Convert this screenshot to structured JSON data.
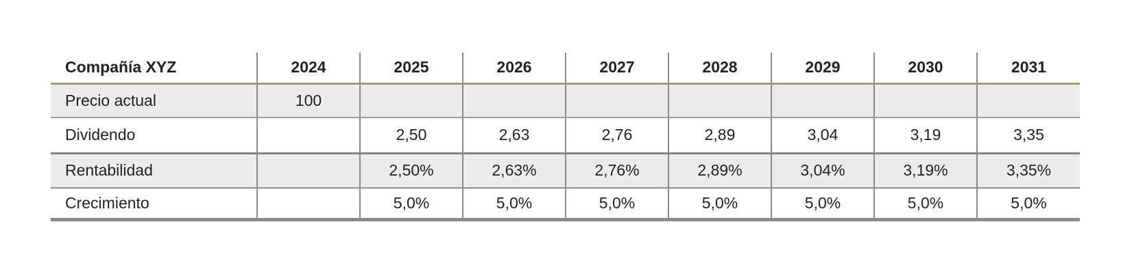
{
  "table": {
    "header": {
      "company": "Compañía XYZ",
      "years": [
        "2024",
        "2025",
        "2026",
        "2027",
        "2028",
        "2029",
        "2030",
        "2031"
      ]
    },
    "rows": [
      {
        "label": "Precio actual",
        "values": [
          "100",
          "",
          "",
          "",
          "",
          "",
          "",
          ""
        ]
      },
      {
        "label": "Dividendo",
        "values": [
          "",
          "2,50",
          "2,63",
          "2,76",
          "2,89",
          "3,04",
          "3,19",
          "3,35"
        ]
      },
      {
        "label": "Rentabilidad",
        "values": [
          "",
          "2,50%",
          "2,63%",
          "2,76%",
          "2,89%",
          "3,04%",
          "3,19%",
          "3,35%"
        ]
      },
      {
        "label": "Crecimiento",
        "values": [
          "",
          "5,0%",
          "5,0%",
          "5,0%",
          "5,0%",
          "5,0%",
          "5,0%",
          "5,0%"
        ]
      }
    ],
    "colors": {
      "header_underline_gold": "#a49b62",
      "grid_line_gray": "#8a8a8a",
      "bottom_border_gray": "#8a8a8a",
      "stripe_background": "#ececec",
      "text": "#222222"
    }
  },
  "chart_data": {
    "type": "table",
    "title": "Compañía XYZ",
    "categories": [
      "2024",
      "2025",
      "2026",
      "2027",
      "2028",
      "2029",
      "2030",
      "2031"
    ],
    "series": [
      {
        "name": "Precio actual",
        "values": [
          100,
          null,
          null,
          null,
          null,
          null,
          null,
          null
        ]
      },
      {
        "name": "Dividendo",
        "values": [
          null,
          2.5,
          2.63,
          2.76,
          2.89,
          3.04,
          3.19,
          3.35
        ]
      },
      {
        "name": "Rentabilidad (%)",
        "values": [
          null,
          2.5,
          2.63,
          2.76,
          2.89,
          3.04,
          3.19,
          3.35
        ]
      },
      {
        "name": "Crecimiento (%)",
        "values": [
          null,
          5.0,
          5.0,
          5.0,
          5.0,
          5.0,
          5.0,
          5.0
        ]
      }
    ],
    "layout": {
      "decimal_separator": "comma",
      "striped_rows": [
        0,
        2
      ],
      "grid": "vertical-lines-and-row-separators",
      "legend_position": "none"
    }
  }
}
